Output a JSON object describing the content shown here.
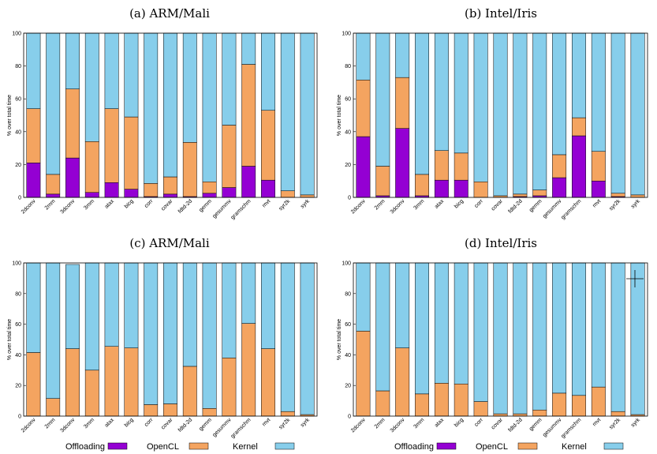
{
  "colors": {
    "offloading": "#9400d3",
    "opencl": "#f4a460",
    "kernel": "#87ceeb"
  },
  "legends": [
    {
      "items": [
        {
          "name": "Offloading",
          "color": "#9400d3"
        },
        {
          "name": "OpenCL",
          "color": "#f4a460"
        },
        {
          "name": "Kernel",
          "color": "#87ceeb"
        }
      ]
    },
    {
      "items": [
        {
          "name": "Offloading",
          "color": "#9400d3"
        },
        {
          "name": "OpenCL",
          "color": "#f4a460"
        },
        {
          "name": "Kernel",
          "color": "#87ceeb"
        }
      ]
    }
  ],
  "chart_data": [
    {
      "type": "bar",
      "stacked": true,
      "title": "(a) ARM/Mali",
      "ylabel": "% over total time",
      "ylim": [
        0,
        100
      ],
      "yticks": [
        0,
        20,
        40,
        60,
        80,
        100
      ],
      "categories": [
        "2dconv",
        "2mm",
        "3dconv",
        "3mm",
        "atax",
        "bicg",
        "corr",
        "covar",
        "fdtd-2d",
        "gemm",
        "gesummv",
        "gramschm",
        "mvt",
        "syr2k",
        "syrk"
      ],
      "series": [
        {
          "name": "Offloading",
          "values": [
            21,
            2,
            24,
            3,
            9,
            5,
            0.5,
            2,
            0.5,
            2.5,
            6,
            19,
            10.5,
            0,
            0
          ]
        },
        {
          "name": "OpenCL",
          "values": [
            33,
            12,
            42,
            31,
            45,
            44,
            8,
            10.5,
            33,
            7,
            38,
            62,
            42.5,
            4,
            1.5
          ]
        },
        {
          "name": "Kernel",
          "values": [
            46,
            86,
            34,
            66,
            46,
            51,
            91.5,
            87.5,
            66.5,
            90.5,
            56,
            19,
            47,
            96,
            98.5
          ]
        }
      ]
    },
    {
      "type": "bar",
      "stacked": true,
      "title": "(b) Intel/Iris",
      "ylabel": "% over total time",
      "ylim": [
        0,
        100
      ],
      "yticks": [
        0,
        20,
        40,
        60,
        80,
        100
      ],
      "categories": [
        "2dconv",
        "2mm",
        "3dconv",
        "3mm",
        "atax",
        "bicg",
        "corr",
        "covar",
        "fdtd-2d",
        "gemm",
        "gesummv",
        "gramschm",
        "mvt",
        "syr2k",
        "syrk"
      ],
      "series": [
        {
          "name": "Offloading",
          "values": [
            37,
            1,
            42,
            1,
            10.5,
            10.5,
            0,
            0,
            0.5,
            1,
            12,
            37.5,
            10,
            0.5,
            0
          ]
        },
        {
          "name": "OpenCL",
          "values": [
            34.5,
            18,
            31,
            13,
            18,
            16.5,
            9.5,
            1,
            1.5,
            3.5,
            14,
            11,
            18,
            2,
            1.5
          ]
        },
        {
          "name": "Kernel",
          "values": [
            28.5,
            81,
            27,
            86,
            71.5,
            73,
            90.5,
            99,
            98,
            95.5,
            74,
            51.5,
            72,
            97.5,
            98.5
          ]
        }
      ]
    },
    {
      "type": "bar",
      "stacked": true,
      "title": "(c) ARM/Mali",
      "ylabel": "% over total time",
      "ylim": [
        0,
        100
      ],
      "yticks": [
        0,
        20,
        40,
        60,
        80,
        100
      ],
      "categories": [
        "2dconv",
        "2mm",
        "3dconv",
        "3mm",
        "atax",
        "bicg",
        "corr",
        "covar",
        "fdtd-2d",
        "gemm",
        "gesummv",
        "gramschm",
        "mvt",
        "syr2k",
        "syrk"
      ],
      "series": [
        {
          "name": "Offloading",
          "values": [
            0,
            0,
            0,
            0,
            0,
            0,
            0,
            0,
            0,
            0,
            0,
            0,
            0,
            0,
            0
          ]
        },
        {
          "name": "OpenCL",
          "values": [
            41.5,
            11.5,
            44,
            30,
            45.5,
            44.5,
            7.5,
            8,
            32.5,
            5,
            38,
            60.5,
            44,
            3,
            1
          ]
        },
        {
          "name": "Kernel",
          "values": [
            58.5,
            88.5,
            55,
            70,
            54.5,
            55.5,
            92.5,
            92,
            67.5,
            95,
            62,
            39.5,
            56,
            97,
            99
          ]
        }
      ]
    },
    {
      "type": "bar",
      "stacked": true,
      "title": "(d) Intel/Iris",
      "ylabel": "% over total time",
      "ylim": [
        0,
        100
      ],
      "yticks": [
        0,
        20,
        40,
        60,
        80,
        100
      ],
      "categories": [
        "2dconv",
        "2mm",
        "3dconv",
        "3mm",
        "atax",
        "bicg",
        "corr",
        "covar",
        "fdtd-2d",
        "gemm",
        "gesummv",
        "gramschm",
        "mvt",
        "syr2k",
        "syrk"
      ],
      "series": [
        {
          "name": "Offloading",
          "values": [
            0,
            0,
            0,
            0,
            0,
            0,
            0,
            0,
            0,
            0,
            0,
            0,
            0,
            0,
            0
          ]
        },
        {
          "name": "OpenCL",
          "values": [
            55.5,
            16.5,
            44.5,
            14.5,
            21.5,
            21,
            9.5,
            1.5,
            1.5,
            4,
            15,
            13.5,
            19,
            3,
            1
          ]
        },
        {
          "name": "Kernel",
          "values": [
            44.5,
            83.5,
            55.5,
            85.5,
            78.5,
            79,
            90.5,
            98.5,
            98.5,
            96,
            85,
            86.5,
            81,
            97,
            99
          ]
        }
      ]
    }
  ]
}
